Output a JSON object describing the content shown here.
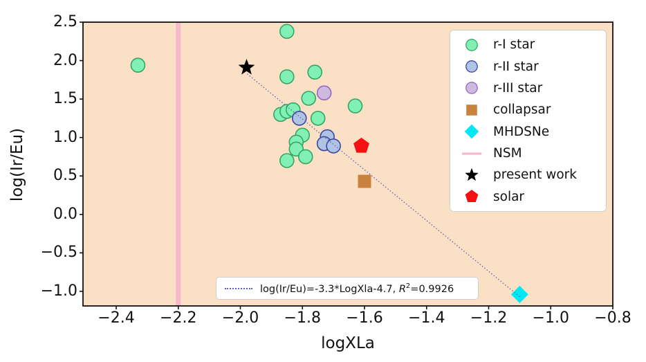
{
  "chart_data": {
    "type": "scatter",
    "title": "",
    "xlabel": "logXLa",
    "ylabel": "log(Ir/Eu)",
    "xlim": [
      -2.507,
      -0.8
    ],
    "ylim": [
      -1.19,
      2.5
    ],
    "grid": false,
    "plot_bg": "#FAE0C4",
    "axis_color": "#111111",
    "legend_position": "upper right",
    "xticks": {
      "values": [
        -2.4,
        -2.2,
        -2.0,
        -1.8,
        -1.6,
        -1.4,
        -1.2,
        -1.0,
        -0.8
      ],
      "labels": [
        "−2.4",
        "−2.2",
        "−2.0",
        "−1.8",
        "−1.6",
        "−1.4",
        "−1.2",
        "−1.0",
        "−0.8"
      ]
    },
    "yticks": {
      "values": [
        2.5,
        2.0,
        1.5,
        1.0,
        0.5,
        0.0,
        -0.5,
        -1.0
      ],
      "labels": [
        "2.5",
        "2.0",
        "1.5",
        "1.0",
        "0.5",
        "0.0",
        "−0.5",
        "−1.0"
      ]
    },
    "series": [
      {
        "name": "r-I star",
        "marker": "circle",
        "fill": "#80F0B4",
        "edge": "#35A465",
        "points": [
          [
            -2.33,
            1.94
          ],
          [
            -1.85,
            2.38
          ],
          [
            -1.85,
            1.79
          ],
          [
            -1.76,
            1.85
          ],
          [
            -1.78,
            1.51
          ],
          [
            -1.63,
            1.41
          ],
          [
            -1.87,
            1.3
          ],
          [
            -1.85,
            1.34
          ],
          [
            -1.83,
            1.36
          ],
          [
            -1.75,
            1.25
          ],
          [
            -1.8,
            1.03
          ],
          [
            -1.82,
            0.94
          ],
          [
            -1.82,
            0.85
          ],
          [
            -1.79,
            0.75
          ],
          [
            -1.85,
            0.7
          ]
        ]
      },
      {
        "name": "r-II star",
        "marker": "circle",
        "fill": "#AFC3E2",
        "edge": "#3D47A0",
        "points": [
          [
            -1.81,
            1.25
          ],
          [
            -1.72,
            1.01
          ],
          [
            -1.73,
            0.92
          ],
          [
            -1.7,
            0.89
          ]
        ]
      },
      {
        "name": "r-III star",
        "marker": "circle",
        "fill": "#CEBADE",
        "edge": "#9668C4",
        "points": [
          [
            -1.73,
            1.58
          ]
        ]
      },
      {
        "name": "collapsar",
        "marker": "square",
        "fill": "#C8823D",
        "edge": "#C8823D",
        "points": [
          [
            -1.6,
            0.43
          ]
        ]
      },
      {
        "name": "MHDSNe",
        "marker": "diamond",
        "fill": "#00E8F4",
        "edge": "#00E8F4",
        "points": [
          [
            -1.1,
            -1.04
          ]
        ]
      },
      {
        "name": "NSM",
        "marker": "vline",
        "fill": "#F9B7CB",
        "edge": "#F9B7CB",
        "x": -2.2,
        "points": []
      },
      {
        "name": "present work",
        "marker": "star",
        "fill": "#000000",
        "edge": "#000000",
        "points": [
          [
            -1.98,
            1.91
          ]
        ]
      },
      {
        "name": "solar",
        "marker": "pentagon",
        "fill": "#F51111",
        "edge": "#F51111",
        "points": [
          [
            -1.61,
            0.89
          ]
        ]
      }
    ],
    "fit_line": {
      "slope": -3.3,
      "intercept": -4.7,
      "x_start": -1.978,
      "x_end": -1.095,
      "color": "#5C5FBE",
      "style": "dotted",
      "label": "log(Ir/Eu)=-3.3*LogXla-4.7, R²=0.9926",
      "r_squared": "0.9926"
    }
  },
  "annotation": {
    "prefix": "log(Ir/Eu)=-3.3*LogXla-4.7, ",
    "r_symbol": "R",
    "r_exponent": "2",
    "r_value": "=0.9926"
  }
}
